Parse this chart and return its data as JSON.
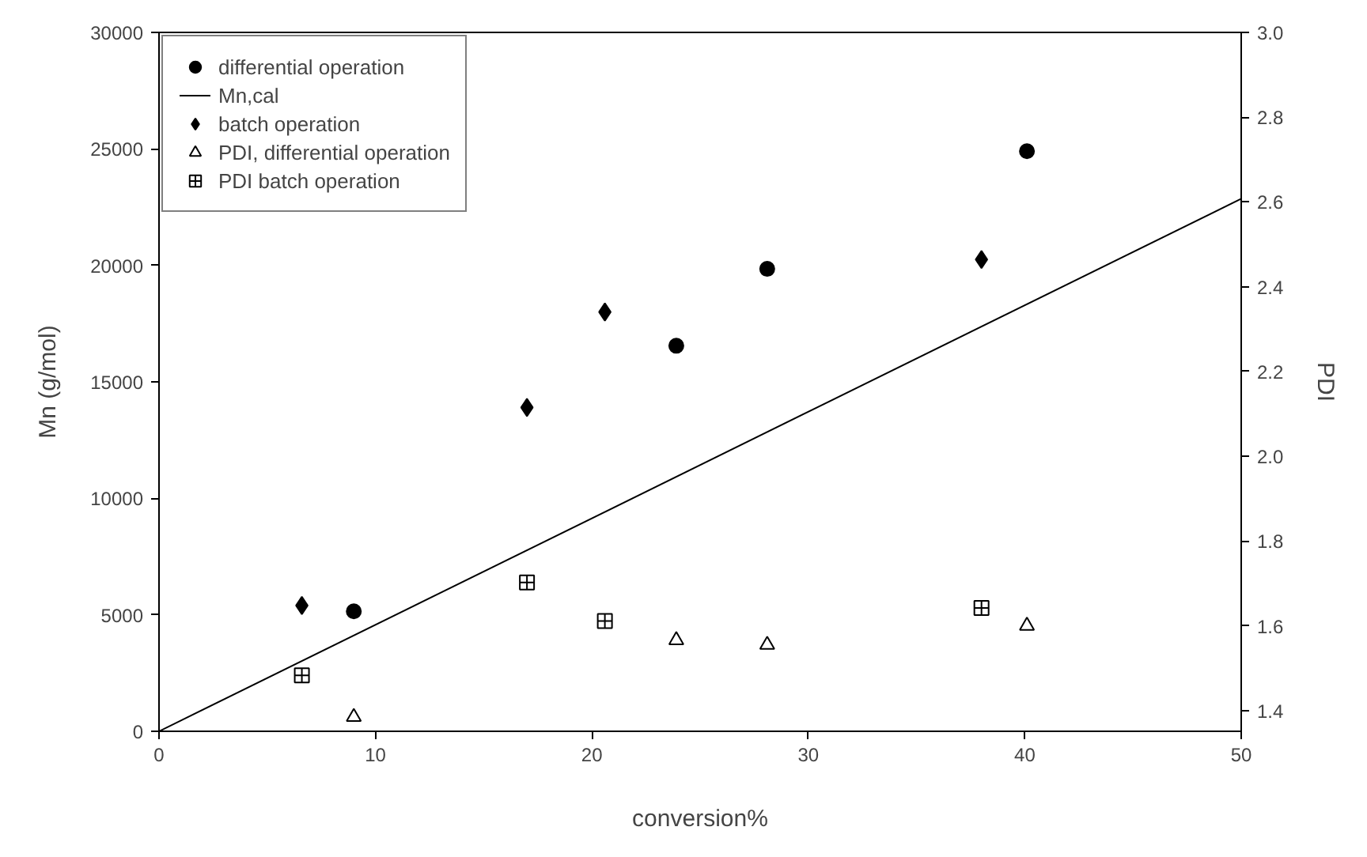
{
  "chart_data": {
    "type": "scatter",
    "xlabel": "conversion%",
    "ylabel": "Mn (g/mol)",
    "y2label": "PDI",
    "xlim": [
      0,
      50
    ],
    "xticks": [
      0,
      10,
      20,
      30,
      40,
      50
    ],
    "ylim": [
      0,
      30000
    ],
    "yticks": [
      0,
      5000,
      10000,
      15000,
      20000,
      25000,
      30000
    ],
    "y2lim": [
      1.351,
      3.0
    ],
    "y2ticks": [
      1.4,
      1.6,
      1.8,
      {
        "value": 2,
        "label": "2.0"
      },
      2.2,
      2.4,
      2.6,
      2.8,
      {
        "value": 3,
        "label": "3.0"
      }
    ],
    "grid": false,
    "legend": "top left",
    "series": [
      {
        "name": "differential operation",
        "marker": "circle",
        "color": "#000000",
        "x": [
          9.0,
          23.9,
          28.1,
          40.1
        ],
        "values": [
          5150,
          16550,
          19850,
          24900
        ]
      },
      {
        "name": "Mn,cal",
        "type": "line",
        "line_style": "solid",
        "color": "#000000",
        "x": [
          0,
          50
        ],
        "values": [
          0,
          22860
        ]
      },
      {
        "name": "batch operation",
        "marker": "diamond",
        "color": "#000000",
        "x": [
          6.6,
          17.0,
          20.6,
          38.0
        ],
        "values": [
          5400,
          13900,
          18000,
          20250
        ]
      },
      {
        "name": "PDI, differential operation",
        "marker": "triangle",
        "color": "#000000",
        "axis": "y2",
        "x": [
          9.0,
          23.9,
          28.1,
          40.1
        ],
        "values": [
          1.385,
          1.566,
          1.555,
          1.6
        ]
      },
      {
        "name": "PDI batch operation",
        "marker": "cross",
        "color": "#000000",
        "axis": "y2",
        "x": [
          6.6,
          17.0,
          20.6,
          38.0
        ],
        "values": [
          1.483,
          1.702,
          1.611,
          1.642
        ]
      }
    ]
  }
}
